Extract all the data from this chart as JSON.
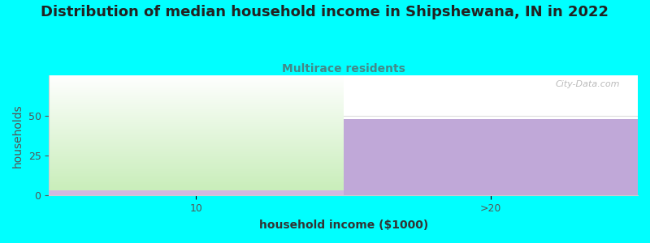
{
  "title": "Distribution of median household income in Shipshewana, IN in 2022",
  "subtitle": "Multirace residents",
  "xlabel": "household income ($1000)",
  "ylabel": "households",
  "background_color": "#00FFFF",
  "plot_bg_color": "#FFFFFF",
  "categories": [
    "10",
    ">20"
  ],
  "values": [
    75,
    48
  ],
  "bar_colors_left": [
    "#e8f5e0",
    "#c8e8b8"
  ],
  "bar_color_right": "#c0a8d8",
  "bar_bottom_strip_color": "#d0b8e0",
  "yticks": [
    0,
    25,
    50
  ],
  "ylim": [
    0,
    75
  ],
  "xlim": [
    0,
    2
  ],
  "title_fontsize": 13,
  "subtitle_fontsize": 10,
  "subtitle_color": "#448888",
  "axis_label_fontsize": 10,
  "tick_fontsize": 9,
  "tick_color": "#555555",
  "watermark_text": "City-Data.com",
  "watermark_color": "#AAAAAA",
  "xtick_positions": [
    0.5,
    1.5
  ],
  "bar_bottom_strip_height": 3
}
